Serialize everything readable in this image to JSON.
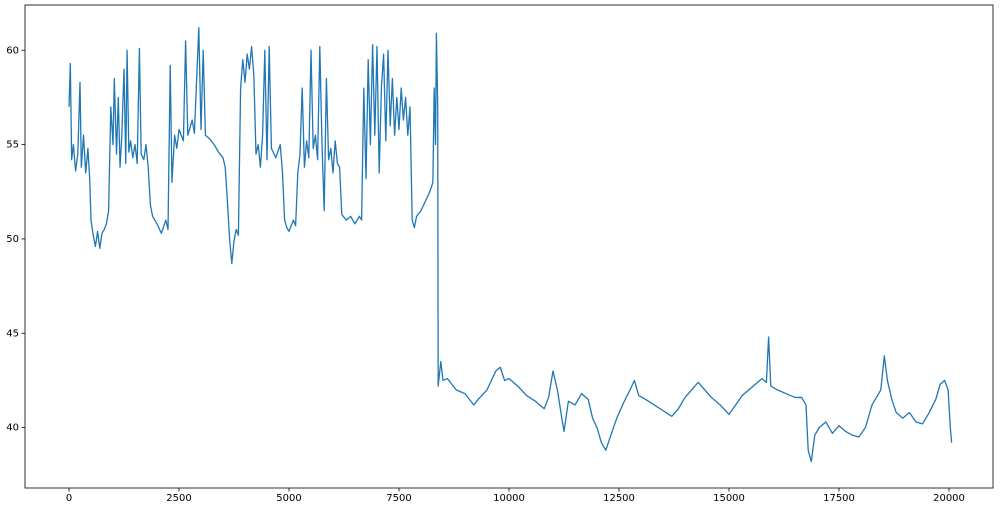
{
  "chart_data": {
    "type": "line",
    "x": [
      0,
      30,
      60,
      100,
      150,
      200,
      250,
      280,
      330,
      380,
      430,
      470,
      500,
      550,
      600,
      650,
      700,
      750,
      800,
      850,
      900,
      950,
      1000,
      1030,
      1080,
      1120,
      1160,
      1200,
      1250,
      1290,
      1320,
      1360,
      1400,
      1450,
      1500,
      1550,
      1600,
      1640,
      1700,
      1750,
      1800,
      1850,
      1900,
      2000,
      2100,
      2200,
      2250,
      2300,
      2340,
      2400,
      2450,
      2500,
      2600,
      2650,
      2700,
      2800,
      2850,
      2950,
      3000,
      3050,
      3100,
      3200,
      3300,
      3400,
      3500,
      3550,
      3600,
      3650,
      3700,
      3750,
      3800,
      3850,
      3900,
      3950,
      4000,
      4050,
      4100,
      4150,
      4200,
      4250,
      4300,
      4350,
      4400,
      4450,
      4500,
      4550,
      4600,
      4700,
      4800,
      4850,
      4900,
      4950,
      5000,
      5100,
      5150,
      5200,
      5250,
      5300,
      5350,
      5400,
      5450,
      5500,
      5550,
      5600,
      5650,
      5700,
      5750,
      5800,
      5850,
      5900,
      5950,
      6000,
      6050,
      6100,
      6150,
      6200,
      6300,
      6400,
      6500,
      6600,
      6650,
      6700,
      6750,
      6800,
      6850,
      6900,
      6950,
      7000,
      7050,
      7100,
      7150,
      7200,
      7250,
      7300,
      7350,
      7400,
      7450,
      7500,
      7550,
      7600,
      7650,
      7700,
      7750,
      7800,
      7850,
      7900,
      8000,
      8100,
      8200,
      8270,
      8300,
      8330,
      8350,
      8380,
      8390,
      8450,
      8500,
      8600,
      8800,
      9000,
      9200,
      9300,
      9500,
      9700,
      9800,
      9900,
      10000,
      10200,
      10400,
      10600,
      10800,
      10900,
      11000,
      11100,
      11200,
      11250,
      11350,
      11500,
      11650,
      11800,
      11900,
      12000,
      12100,
      12200,
      12300,
      12450,
      12600,
      12750,
      12850,
      12950,
      13100,
      13300,
      13500,
      13700,
      13850,
      14000,
      14150,
      14300,
      14450,
      14600,
      14800,
      15000,
      15150,
      15300,
      15450,
      15600,
      15750,
      15850,
      15900,
      15950,
      16100,
      16300,
      16500,
      16650,
      16750,
      16800,
      16870,
      16950,
      17050,
      17200,
      17350,
      17500,
      17650,
      17800,
      17950,
      18100,
      18250,
      18350,
      18450,
      18530,
      18600,
      18700,
      18800,
      18950,
      19100,
      19250,
      19400,
      19550,
      19700,
      19800,
      19900,
      19980,
      20030,
      20060
    ],
    "series": [
      {
        "color": "#1f77b4",
        "values": [
          57,
          59.3,
          54.2,
          55,
          53.6,
          54.5,
          58.3,
          53.8,
          55.5,
          53.5,
          54.8,
          53.2,
          51,
          50.2,
          49.6,
          50.4,
          49.5,
          50.3,
          50.5,
          50.8,
          51.5,
          57,
          55,
          58.5,
          54.5,
          57.5,
          53.8,
          55.5,
          59,
          54,
          60,
          54.6,
          55.2,
          54.3,
          55,
          54,
          60.1,
          54.5,
          54.2,
          55,
          53.8,
          51.8,
          51.2,
          50.8,
          50.3,
          51,
          50.5,
          59.2,
          53,
          55.5,
          54.8,
          55.8,
          55.2,
          60.5,
          55.5,
          56.3,
          55.6,
          61.2,
          55.8,
          60,
          55.5,
          55.3,
          55,
          54.6,
          54.3,
          53.8,
          52,
          50,
          48.7,
          49.9,
          50.5,
          50.2,
          58,
          59.5,
          58.3,
          59.8,
          59,
          60.2,
          58.7,
          54.5,
          55,
          53.8,
          55.5,
          60,
          54.2,
          60.2,
          54.8,
          54.3,
          55,
          53.6,
          51,
          50.6,
          50.4,
          51,
          50.7,
          53.5,
          54.5,
          58,
          53.8,
          55.2,
          54.3,
          60,
          54.8,
          55.5,
          54.2,
          60.2,
          55,
          51.5,
          58.5,
          54.2,
          54.8,
          53.5,
          55.2,
          54,
          53.8,
          51.3,
          51,
          51.2,
          50.8,
          51.2,
          51,
          58,
          53.2,
          59.5,
          55,
          60.3,
          55.5,
          60.2,
          53.5,
          58,
          59.8,
          55.2,
          60,
          56,
          58.5,
          55.5,
          57.5,
          55.8,
          58,
          56.3,
          57.5,
          55.5,
          57,
          51,
          50.6,
          51.2,
          51.5,
          52,
          52.5,
          53,
          58,
          55,
          60.9,
          57,
          42.2,
          43.5,
          42.5,
          42.6,
          42,
          41.8,
          41.2,
          41.5,
          42,
          43,
          43.2,
          42.5,
          42.6,
          42.2,
          41.7,
          41.4,
          41,
          41.6,
          43,
          42,
          40.5,
          39.8,
          41.4,
          41.2,
          41.8,
          41.5,
          40.5,
          40,
          39.2,
          38.8,
          39.5,
          40.5,
          41.3,
          42,
          42.5,
          41.7,
          41.5,
          41.2,
          40.9,
          40.6,
          41,
          41.6,
          42,
          42.4,
          42,
          41.6,
          41.2,
          40.7,
          41.2,
          41.7,
          42,
          42.3,
          42.6,
          42.4,
          44.8,
          42.2,
          42,
          41.8,
          41.6,
          41.6,
          41.2,
          38.8,
          38.2,
          39.6,
          40,
          40.3,
          39.7,
          40.1,
          39.8,
          39.6,
          39.5,
          40,
          41.2,
          41.6,
          42,
          43.8,
          42.5,
          41.5,
          40.8,
          40.5,
          40.8,
          40.3,
          40.2,
          40.8,
          41.5,
          42.3,
          42.5,
          42,
          40,
          39.2
        ]
      }
    ],
    "xlim": [
      -1000,
      21000
    ],
    "xticks": [
      0,
      2500,
      5000,
      7500,
      10000,
      12500,
      15000,
      17500,
      20000
    ],
    "ylim": [
      36.8,
      62.4
    ],
    "yticks": [
      40,
      45,
      50,
      55,
      60
    ]
  }
}
